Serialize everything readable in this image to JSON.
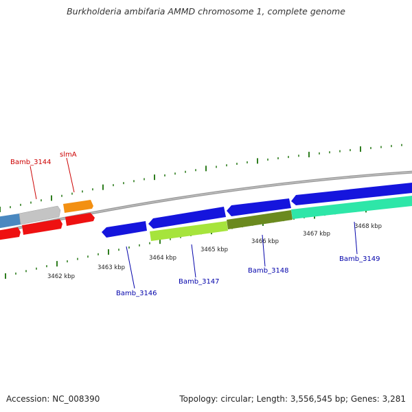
{
  "title": "Burkholderia ambifaria AMMD chromosome 1, complete genome",
  "footer": {
    "accession": "Accession: NC_008390",
    "summary": "Topology: circular; Length: 3,556,545 bp; Genes: 3,281"
  },
  "ticks": [
    "3462 kbp",
    "3463 kbp",
    "3464 kbp",
    "3465 kbp",
    "3466 kbp",
    "3467 kbp",
    "3468 kbp"
  ],
  "gene_labels": {
    "bamb_3144": "Bamb_3144",
    "slma": "slmA",
    "bamb_3146": "Bamb_3146",
    "bamb_3147": "Bamb_3147",
    "bamb_3148": "Bamb_3148",
    "bamb_3149": "Bamb_3149"
  },
  "colors": {
    "backbone": "#888888",
    "forward_label": "#cc0000",
    "reverse_label": "#0000aa",
    "tick": "#2e7d1e",
    "red_gene": "#ee1111",
    "orange_gene": "#f39012",
    "gray_gene": "#c0c0c0",
    "steel_gene": "#4a88c0",
    "blue_gene": "#1515dd",
    "lime_gene": "#a6e43c",
    "olive_gene": "#6b8a1f",
    "aqua_gene": "#2ee6a8"
  }
}
